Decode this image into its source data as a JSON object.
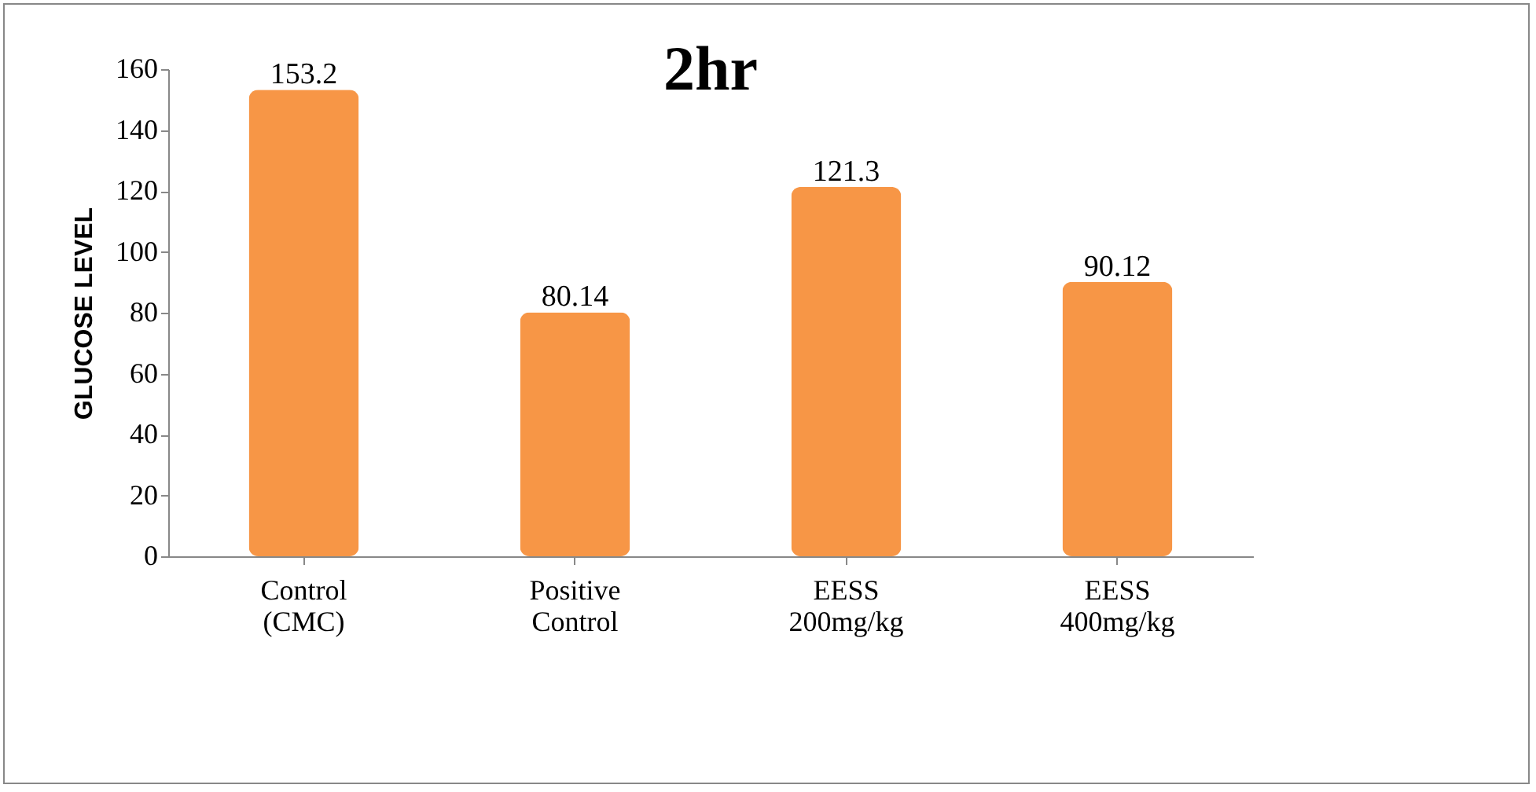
{
  "chart_data": {
    "type": "bar",
    "title": "2hr",
    "ylabel": "GLUCOSE LEVEL",
    "categories": [
      "Control (CMC)",
      "Positive Control",
      "EESS 200mg/kg",
      "EESS 400mg/kg"
    ],
    "values": [
      153.2,
      80.14,
      121.3,
      90.12
    ],
    "color": "#f79646",
    "ylim": [
      0,
      160
    ],
    "yticks": [
      0,
      20,
      40,
      60,
      80,
      100,
      120,
      140,
      160
    ],
    "data_labels": true,
    "grid": false
  }
}
